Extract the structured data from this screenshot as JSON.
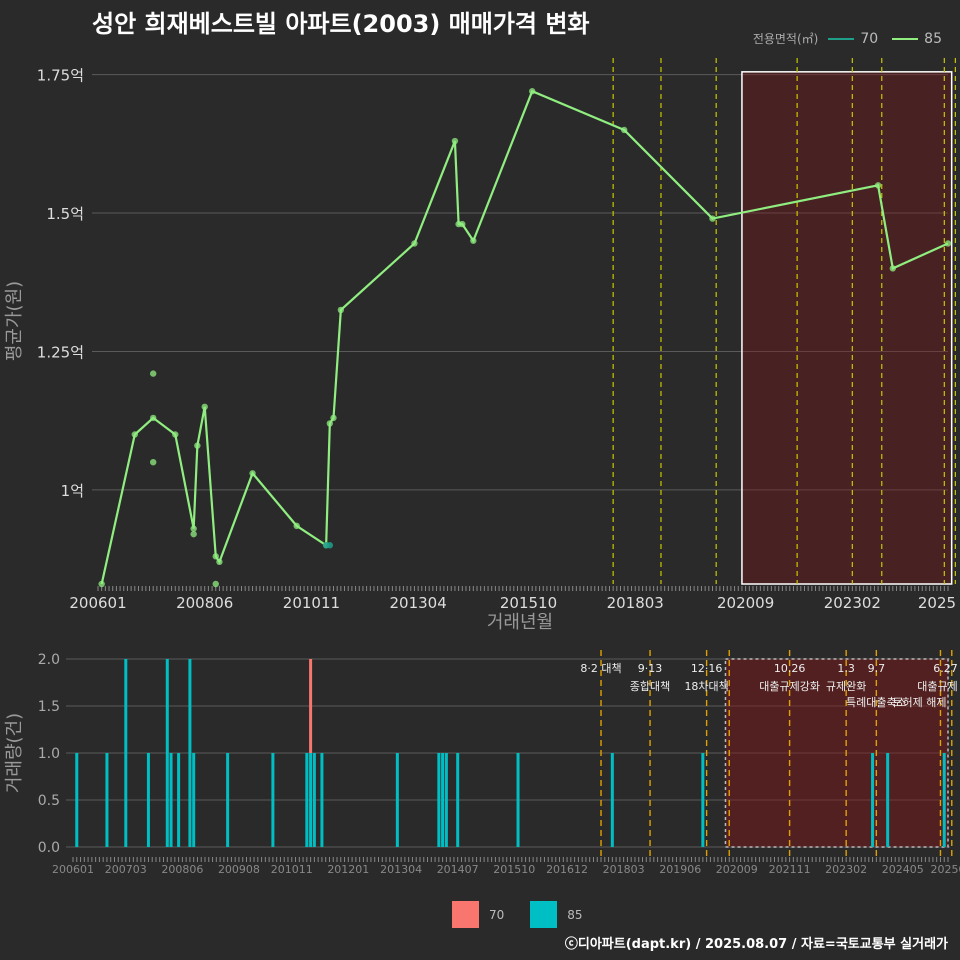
{
  "title": "성안 희재베스트빌 아파트(2003) 매매가격 변화",
  "legend": {
    "title": "전용면적(㎡)",
    "items": [
      {
        "label": "70",
        "line_color": "#1f9e89",
        "bar_color": "#f8766d"
      },
      {
        "label": "85",
        "line_color": "#90ee80",
        "bar_color": "#00bfc4"
      }
    ]
  },
  "footer": "ⓒ디아파트(dapt.kr) / 2025.08.07 / 자료=국토교통부 실거래가",
  "chart_data": [
    {
      "type": "line",
      "ylabel": "평균가(원)",
      "xlabel": "거래년월",
      "ylim": [
        0.83,
        1.78
      ],
      "yticks": [
        {
          "v": 1.0,
          "label": "1억"
        },
        {
          "v": 1.25,
          "label": "1.25억"
        },
        {
          "v": 1.5,
          "label": "1.5억"
        },
        {
          "v": 1.75,
          "label": "1.75억"
        }
      ],
      "xticks": [
        {
          "m": 0,
          "label": "200601"
        },
        {
          "m": 29,
          "label": "200806"
        },
        {
          "m": 58,
          "label": "201011"
        },
        {
          "m": 87,
          "label": "201304"
        },
        {
          "m": 117,
          "label": "201510"
        },
        {
          "m": 146,
          "label": "201803"
        },
        {
          "m": 176,
          "label": "202009"
        },
        {
          "m": 205,
          "label": "202302"
        },
        {
          "m": 228,
          "label": "2025"
        }
      ],
      "series": [
        {
          "name": "85",
          "points": [
            [
              1,
              0.83
            ],
            [
              10,
              1.1
            ],
            [
              15,
              1.13
            ],
            [
              21,
              1.1
            ],
            [
              26,
              0.93
            ],
            [
              27,
              1.08
            ],
            [
              29,
              1.15
            ],
            [
              32,
              0.88
            ],
            [
              33,
              0.87
            ],
            [
              42,
              1.03
            ],
            [
              54,
              0.935
            ],
            [
              62,
              0.9
            ],
            [
              63,
              1.12
            ],
            [
              64,
              1.13
            ],
            [
              66,
              1.325
            ],
            [
              86,
              1.445
            ],
            [
              97,
              1.63
            ],
            [
              98,
              1.48
            ],
            [
              99,
              1.48
            ],
            [
              102,
              1.45
            ],
            [
              118,
              1.72
            ],
            [
              143,
              1.65
            ],
            [
              167,
              1.49
            ],
            [
              212,
              1.55
            ],
            [
              216,
              1.4
            ],
            [
              231,
              1.445
            ]
          ]
        }
      ],
      "scatter_85": [
        [
          15,
          1.21
        ],
        [
          15,
          1.05
        ],
        [
          26,
          0.92
        ],
        [
          32,
          0.83
        ]
      ],
      "scatter_70": [
        [
          62,
          0.9
        ],
        [
          63,
          0.9
        ]
      ],
      "policy_months": [
        140,
        153,
        168,
        190,
        205,
        213,
        230,
        233
      ],
      "highlight_months": [
        175,
        232
      ]
    },
    {
      "type": "bar",
      "ylabel": "거래량(건)",
      "ylim": [
        0,
        2.08
      ],
      "yticks": [
        {
          "v": 0,
          "label": "0.0"
        },
        {
          "v": 0.5,
          "label": "0.5"
        },
        {
          "v": 1.0,
          "label": "1.0"
        },
        {
          "v": 1.5,
          "label": "1.5"
        },
        {
          "v": 2.0,
          "label": "2.0"
        }
      ],
      "xticks": [
        {
          "m": 0,
          "label": "200601"
        },
        {
          "m": 14,
          "label": "200703"
        },
        {
          "m": 29,
          "label": "200806"
        },
        {
          "m": 44,
          "label": "200908"
        },
        {
          "m": 58,
          "label": "201011"
        },
        {
          "m": 73,
          "label": "201201"
        },
        {
          "m": 87,
          "label": "201304"
        },
        {
          "m": 102,
          "label": "201407"
        },
        {
          "m": 117,
          "label": "201510"
        },
        {
          "m": 131,
          "label": "201612"
        },
        {
          "m": 146,
          "label": "201803"
        },
        {
          "m": 161,
          "label": "201906"
        },
        {
          "m": 176,
          "label": "202009"
        },
        {
          "m": 190,
          "label": "202111"
        },
        {
          "m": 205,
          "label": "202302"
        },
        {
          "m": 220,
          "label": "202405"
        },
        {
          "m": 232,
          "label": "20250"
        }
      ],
      "bars_85": [
        [
          1,
          1
        ],
        [
          9,
          1
        ],
        [
          14,
          2
        ],
        [
          20,
          1
        ],
        [
          25,
          2
        ],
        [
          26,
          1
        ],
        [
          28,
          1
        ],
        [
          31,
          2
        ],
        [
          32,
          1
        ],
        [
          41,
          1
        ],
        [
          53,
          1
        ],
        [
          62,
          1
        ],
        [
          63,
          1
        ],
        [
          64,
          1
        ],
        [
          66,
          1
        ],
        [
          86,
          1
        ],
        [
          97,
          1
        ],
        [
          98,
          1
        ],
        [
          99,
          1
        ],
        [
          102,
          1
        ],
        [
          118,
          1
        ],
        [
          143,
          1
        ],
        [
          167,
          1
        ],
        [
          212,
          1
        ],
        [
          216,
          1
        ],
        [
          231,
          1
        ]
      ],
      "bars_70": [
        [
          63,
          2
        ]
      ],
      "policy_lines": [
        {
          "m": 140,
          "date": "8·2 대책",
          "name": ""
        },
        {
          "m": 153,
          "date": "9·13",
          "name": "종합대책"
        },
        {
          "m": 168,
          "date": "12·16",
          "name": "18차대책"
        },
        {
          "m": 174,
          "date": "",
          "name": ""
        },
        {
          "m": 190,
          "date": "10.26",
          "name": "대출규제강화"
        },
        {
          "m": 205,
          "date": "1.3",
          "name": "규제완화"
        },
        {
          "m": 213,
          "date": "9.7",
          "name": "특례대출축소"
        },
        {
          "m": 230,
          "date": "",
          "name": "토허제 해제"
        },
        {
          "m": 233,
          "date": "6.27",
          "name": "대출규제"
        }
      ],
      "highlight_months": [
        173,
        232
      ]
    }
  ]
}
